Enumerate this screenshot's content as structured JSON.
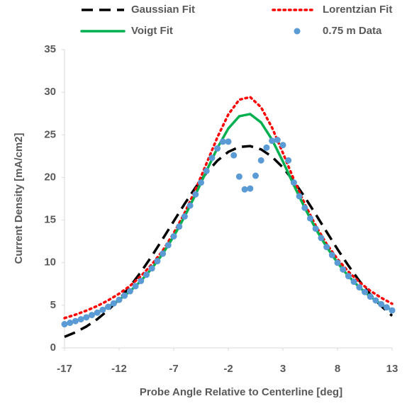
{
  "chart_data": {
    "type": "line",
    "x_label": "Probe Angle Relative to Centerline [deg]",
    "y_label": "Current Density [mA/cm2]",
    "x": [
      -17,
      -16,
      -15,
      -14,
      -13,
      -12,
      -11,
      -10,
      -9,
      -8,
      -7,
      -6,
      -5,
      -4,
      -3,
      -2,
      -1,
      0,
      1,
      2,
      3,
      4,
      5,
      6,
      7,
      8,
      9,
      10,
      11,
      12,
      13
    ],
    "series": [
      {
        "name": "Gaussian Fit",
        "color": "#000000",
        "style": "dashed",
        "values": [
          1.3,
          1.83,
          2.51,
          3.37,
          4.43,
          5.71,
          7.21,
          8.91,
          10.79,
          12.8,
          14.86,
          16.9,
          18.83,
          20.55,
          21.97,
          23.0,
          23.58,
          23.68,
          23.29,
          22.43,
          21.16,
          19.56,
          17.7,
          15.68,
          13.62,
          11.58,
          9.65,
          7.87,
          6.29,
          4.91,
          3.77
        ]
      },
      {
        "name": "Lorentzian Fit",
        "color": "#ff0000",
        "style": "dotted",
        "values": [
          3.5,
          3.9,
          4.37,
          4.92,
          5.58,
          6.36,
          7.28,
          8.43,
          9.8,
          11.43,
          13.47,
          15.83,
          18.58,
          21.63,
          24.71,
          27.39,
          29.12,
          29.43,
          28.23,
          25.85,
          22.87,
          19.77,
          16.89,
          14.35,
          12.2,
          10.42,
          8.94,
          7.72,
          6.7,
          5.88,
          5.18
        ]
      },
      {
        "name": "Voigt Fit",
        "color": "#00b050",
        "style": "solid",
        "values": [
          2.78,
          3.14,
          3.59,
          4.14,
          4.82,
          5.64,
          6.65,
          7.86,
          9.33,
          11.06,
          13.09,
          15.42,
          18.01,
          20.76,
          23.46,
          25.74,
          27.18,
          27.44,
          26.45,
          24.44,
          21.87,
          19.1,
          16.43,
          13.99,
          11.84,
          9.99,
          8.42,
          7.11,
          6.02,
          5.13,
          4.4
        ]
      },
      {
        "name": "0.75 m Data",
        "color": "#5b9bd5",
        "style": "markers",
        "x": [
          -17,
          -16.5,
          -16,
          -15.5,
          -15,
          -14.5,
          -14,
          -13.5,
          -13,
          -12.5,
          -12,
          -11.5,
          -11,
          -10.5,
          -10,
          -9.5,
          -9,
          -8.5,
          -8,
          -7.5,
          -7,
          -6.5,
          -6,
          -5.5,
          -5,
          -4.5,
          -4,
          -3.5,
          -3,
          -2.5,
          -2,
          -1.5,
          -1,
          -0.5,
          0,
          0.5,
          1,
          1.5,
          2,
          2.5,
          3,
          3.5,
          4,
          4.5,
          5,
          5.5,
          6,
          6.5,
          7,
          7.5,
          8,
          8.5,
          9,
          9.5,
          10,
          10.5,
          11,
          11.5,
          12,
          12.5,
          13
        ],
        "values": [
          2.78,
          2.95,
          3.14,
          3.36,
          3.59,
          3.86,
          4.14,
          4.47,
          4.82,
          5.22,
          5.64,
          6.13,
          6.65,
          7.24,
          7.86,
          8.58,
          9.33,
          10.18,
          11.06,
          12.05,
          13.09,
          14.24,
          15.42,
          16.7,
          18.01,
          19.4,
          20.76,
          22.3,
          23.4,
          24.2,
          24.2,
          22.6,
          20.1,
          18.6,
          18.7,
          20.2,
          22.0,
          23.5,
          24.3,
          24.4,
          23.8,
          22.0,
          19.4,
          17.8,
          16.43,
          15.2,
          13.99,
          12.9,
          11.84,
          10.9,
          9.99,
          9.2,
          8.42,
          7.76,
          7.11,
          6.56,
          6.02,
          5.57,
          5.13,
          4.76,
          4.4
        ]
      }
    ],
    "xlim": [
      -17,
      13
    ],
    "xticks": [
      -17,
      -12,
      -7,
      -2,
      3,
      8,
      13
    ],
    "ylim": [
      0,
      35
    ],
    "yticks": [
      0,
      5,
      10,
      15,
      20,
      25,
      30,
      35
    ],
    "grid": false
  }
}
